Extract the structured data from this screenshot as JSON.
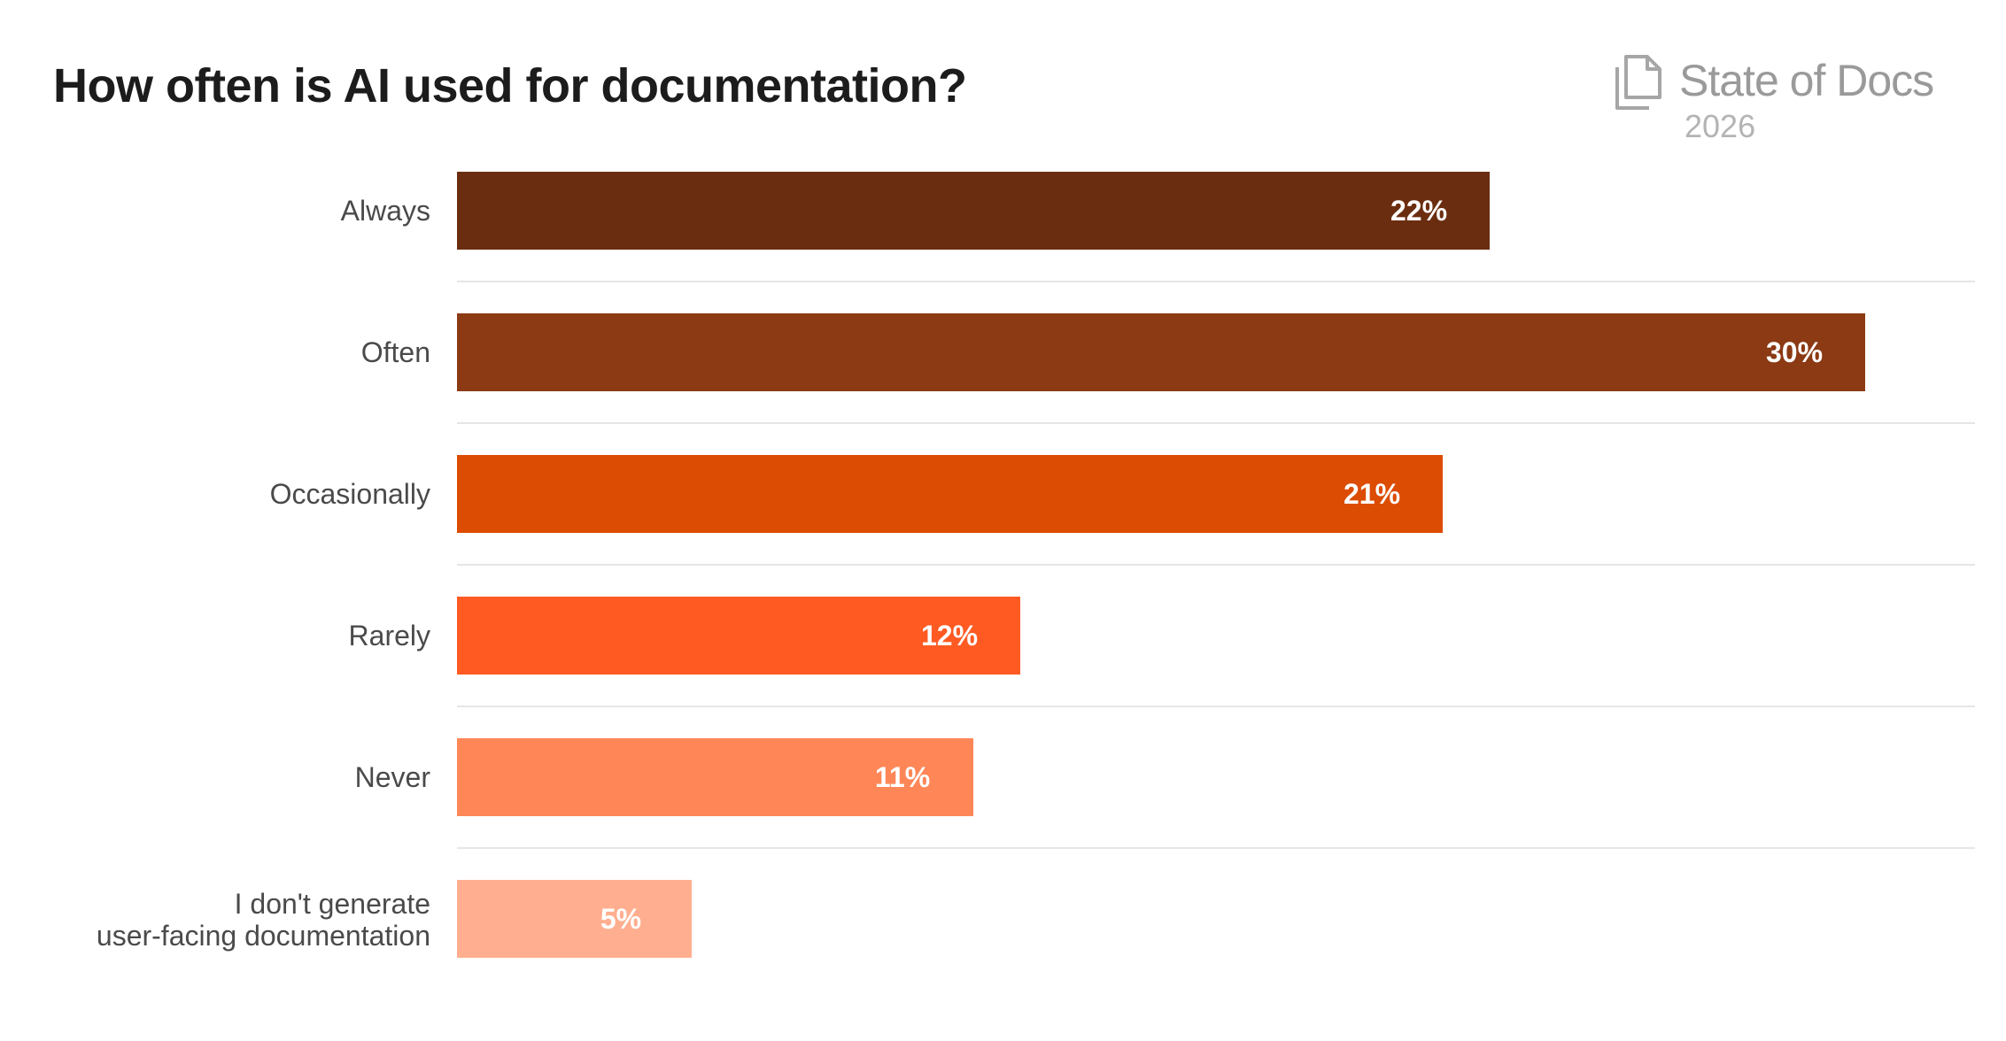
{
  "header": {
    "title": "How often is AI used for documentation?"
  },
  "brand": {
    "name": "State of Docs",
    "year": "2026",
    "icon": "document-stack-icon"
  },
  "chart_data": {
    "type": "bar",
    "orientation": "horizontal",
    "title": "How often is AI used for documentation?",
    "categories": [
      "Always",
      "Often",
      "Occasionally",
      "Rarely",
      "Never",
      "I don't generate user-facing documentation"
    ],
    "values": [
      22,
      30,
      21,
      12,
      11,
      5
    ],
    "value_labels": [
      "22%",
      "30%",
      "21%",
      "12%",
      "11%",
      "5%"
    ],
    "colors": [
      "#6b2d10",
      "#8b3a14",
      "#dc4c02",
      "#ff5a22",
      "#ff8757",
      "#ffaf8f"
    ],
    "xlabel": "",
    "ylabel": "",
    "xlim": [
      0,
      32
    ],
    "grid": false,
    "separators": true,
    "legend": "none"
  }
}
